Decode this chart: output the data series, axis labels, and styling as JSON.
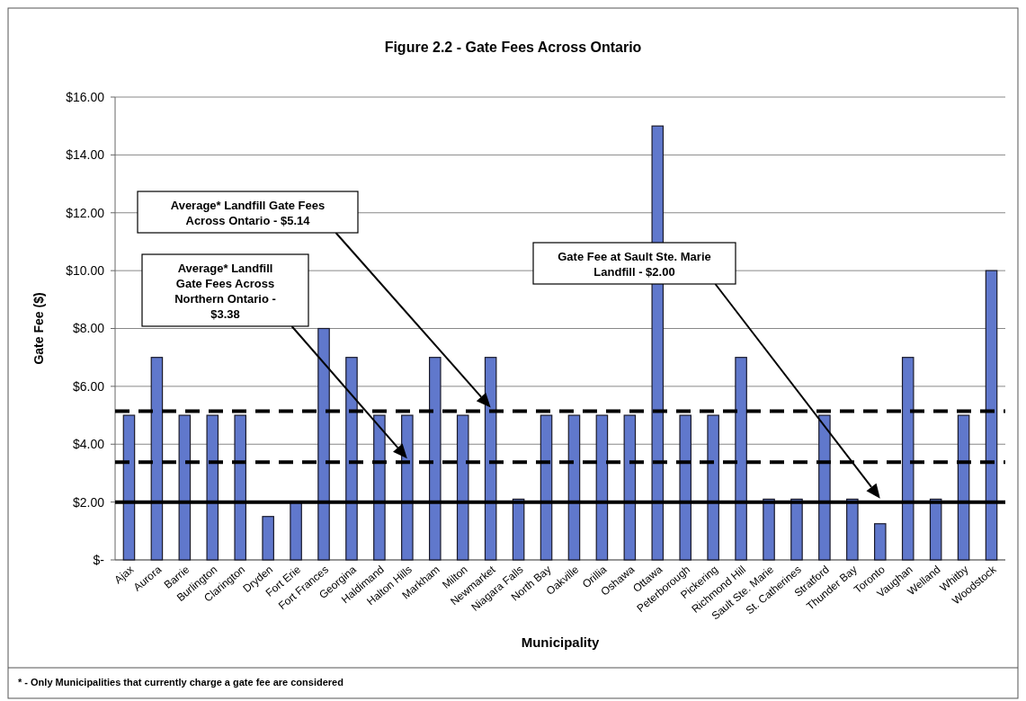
{
  "chart_data": {
    "type": "bar",
    "title": "Figure 2.2 - Gate Fees Across Ontario",
    "xlabel": "Municipality",
    "ylabel": "Gate Fee ($)",
    "categories": [
      "Ajax",
      "Aurora",
      "Barrie",
      "Burlington",
      "Clarington",
      "Dryden",
      "Fort Erie",
      "Fort Frances",
      "Georgina",
      "Haldimand",
      "Halton Hills",
      "Markham",
      "Milton",
      "Newmarket",
      "Niagara Falls",
      "North Bay",
      "Oakville",
      "Orillia",
      "Oshawa",
      "Ottawa",
      "Peterborough",
      "Pickering",
      "Richmond Hill",
      "Sault Ste. Marie",
      "St. Catherines",
      "Stratford",
      "Thunder Bay",
      "Toronto",
      "Vaughan",
      "Welland",
      "Whitby",
      "Woodstock"
    ],
    "values": [
      5,
      7,
      5,
      5,
      5,
      1.5,
      2,
      8,
      7,
      5,
      5,
      7,
      5,
      7,
      2.1,
      5,
      5,
      5,
      5,
      15,
      5,
      5,
      7,
      2.1,
      2.1,
      5,
      2.1,
      1.25,
      7,
      2.1,
      5,
      10
    ],
    "color": "#6078cc",
    "ylim": [
      0,
      16
    ],
    "yticks": [
      {
        "value": 0,
        "label": "$-"
      },
      {
        "value": 2,
        "label": "$2.00"
      },
      {
        "value": 4,
        "label": "$4.00"
      },
      {
        "value": 6,
        "label": "$6.00"
      },
      {
        "value": 8,
        "label": "$8.00"
      },
      {
        "value": 10,
        "label": "$10.00"
      },
      {
        "value": 12,
        "label": "$12.00"
      },
      {
        "value": 14,
        "label": "$14.00"
      },
      {
        "value": 16,
        "label": "$16.00"
      }
    ],
    "grid": "y",
    "ref_lines": [
      {
        "axis": "y",
        "value": 5.14,
        "line_style": "dashed",
        "color": "#000000"
      },
      {
        "axis": "y",
        "value": 3.38,
        "line_style": "dashed",
        "color": "#000000"
      },
      {
        "axis": "y",
        "value": 2.0,
        "line_style": "solid",
        "color": "#000000"
      }
    ],
    "annotations": [
      "Average* Landfill Gate Fees Across Ontario - $5.14",
      "Average* Landfill Gate Fees Across  Northern Ontario - $3.38",
      "Gate Fee at Sault Ste. Marie Landfill - $2.00",
      "* - Only Municipalities that currently charge a gate fee are considered"
    ]
  }
}
